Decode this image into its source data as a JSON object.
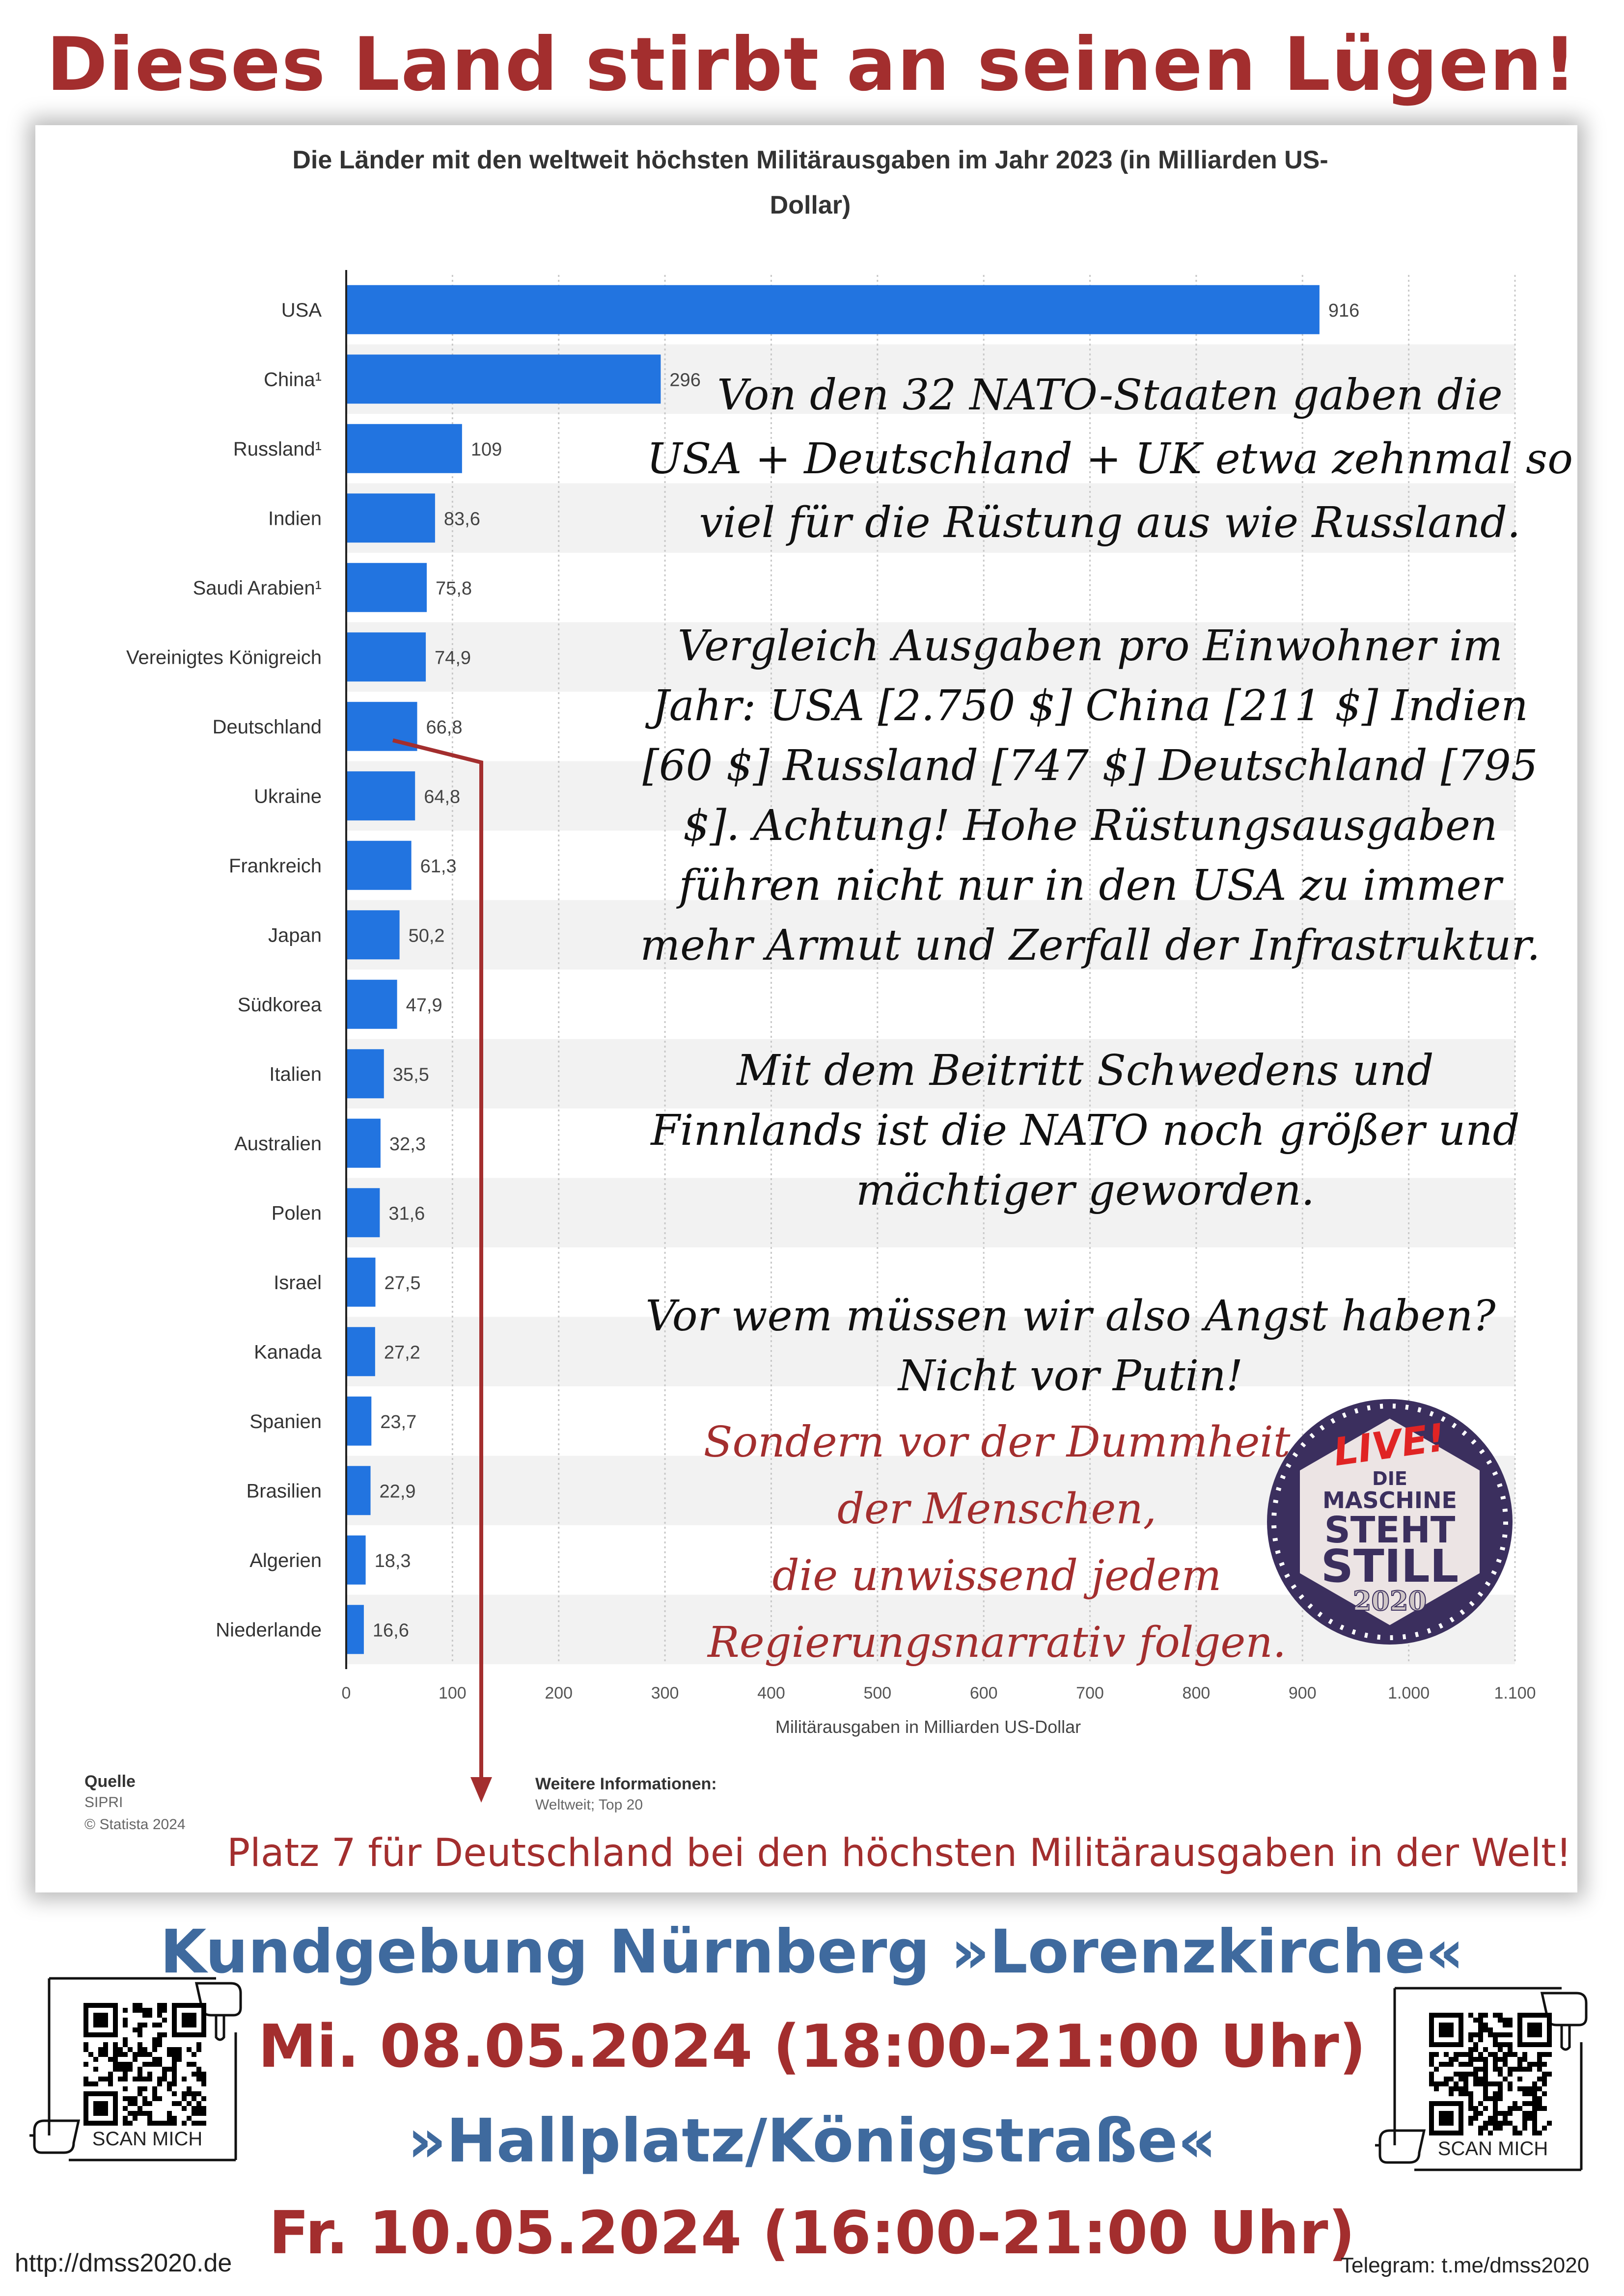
{
  "headline": "Dieses Land stirbt an seinen Lügen!",
  "chart_data": {
    "type": "bar",
    "orientation": "horizontal",
    "title": "Die Länder mit den weltweit höchsten Militärausgaben im Jahr 2023 (in Milliarden US-Dollar)",
    "title_lines": [
      "Die Länder mit den weltweit höchsten Militärausgaben im Jahr 2023 (in Milliarden US-",
      "Dollar)"
    ],
    "categories": [
      "USA",
      "China¹",
      "Russland¹",
      "Indien",
      "Saudi Arabien¹",
      "Vereinigtes Königreich",
      "Deutschland",
      "Ukraine",
      "Frankreich",
      "Japan",
      "Südkorea",
      "Italien",
      "Australien",
      "Polen",
      "Israel",
      "Kanada",
      "Spanien",
      "Brasilien",
      "Algerien",
      "Niederlande"
    ],
    "values": [
      916,
      296,
      109,
      83.6,
      75.8,
      74.9,
      66.8,
      64.8,
      61.3,
      50.2,
      47.9,
      35.5,
      32.3,
      31.6,
      27.5,
      27.2,
      23.7,
      22.9,
      18.3,
      16.6
    ],
    "value_labels": [
      "916",
      "296",
      "109",
      "83,6",
      "75,8",
      "74,9",
      "66,8",
      "64,8",
      "61,3",
      "50,2",
      "47,9",
      "35,5",
      "32,3",
      "31,6",
      "27,5",
      "27,2",
      "23,7",
      "22,9",
      "18,3",
      "16,6"
    ],
    "xlabel": "Militärausgaben in Milliarden US-Dollar",
    "ylabel": "",
    "xlim": [
      0,
      1100
    ],
    "xticks": [
      0,
      100,
      200,
      300,
      400,
      500,
      600,
      700,
      800,
      900,
      1000,
      1100
    ],
    "xtick_labels": [
      "0",
      "100",
      "200",
      "300",
      "400",
      "500",
      "600",
      "700",
      "800",
      "900",
      "1.000",
      "1.100"
    ],
    "grid": true,
    "bar_color": "#2274e0"
  },
  "overlay": {
    "p1": [
      "Von den 32 NATO-Staaten gaben die",
      "USA + Deutschland + UK etwa zehnmal so",
      "viel für die Rüstung aus wie Russland."
    ],
    "p2": [
      "Vergleich Ausgaben pro Einwohner im",
      "Jahr: USA [2.750 $] China [211 $] Indien",
      "[60 $] Russland [747 $] Deutschland [795",
      "$]. Achtung! Hohe Rüstungsausgaben",
      "führen nicht nur in den USA zu immer",
      "mehr Armut und Zerfall der Infrastruktur."
    ],
    "p3": [
      "Mit dem Beitritt Schwedens und",
      "Finnlands ist die NATO noch größer und",
      "mächtiger geworden."
    ],
    "p4": [
      "Vor wem müssen wir also Angst haben?",
      "Nicht vor Putin!"
    ],
    "p5": [
      "Sondern vor der Dummheit",
      "der Menschen,",
      "die unwissend jedem",
      "Regierungsnarrativ folgen."
    ]
  },
  "badge": {
    "line1": "LIVE!",
    "line2": "DIE",
    "line3": "MASCHINE",
    "line4": "STEHT",
    "line5": "STILL",
    "line6": "2020"
  },
  "source": {
    "label": "Quelle",
    "name": "SIPRI",
    "copyright": "© Statista 2024"
  },
  "info": {
    "label": "Weitere Informationen:",
    "text": "Weltweit; Top 20"
  },
  "rank_note": "Platz 7 für Deutschland bei den höchsten Militärausgaben in der Welt!",
  "event": {
    "line1": "Kundgebung Nürnberg »Lorenzkirche«",
    "line2": "Mi. 08.05.2024 (18:00-21:00 Uhr)",
    "line3": "»Hallplatz/Königstraße«",
    "line4": "Fr.  10.05.2024 (16:00-21:00 Uhr)"
  },
  "qr_left": {
    "scan_label": "SCAN MICH",
    "url": "http://dmss2020.de"
  },
  "qr_right": {
    "scan_label": "SCAN MICH",
    "url": "Telegram: t.me/dmss2020"
  },
  "colors": {
    "headline": "#a32e2e",
    "event_blue": "#3f6a9e",
    "event_red": "#a32e2e",
    "bar": "#2274e0"
  }
}
